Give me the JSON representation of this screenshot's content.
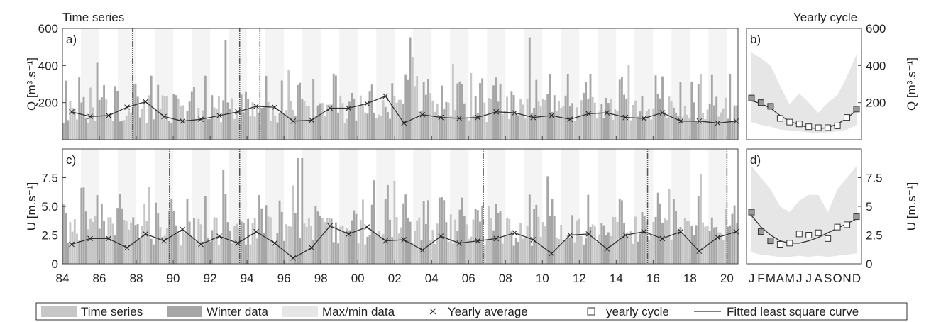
{
  "section_titles": {
    "left": "Time series",
    "right": "Yearly cycle"
  },
  "colors": {
    "series": "#c6c6c6",
    "winter": "#a6a6a6",
    "maxmin": "#e6e6e6",
    "band": "#f4f4f4",
    "line": "#333333"
  },
  "legend": [
    {
      "label": "Time series",
      "kind": "swatch-series"
    },
    {
      "label": "Winter data",
      "kind": "swatch-winter"
    },
    {
      "label": "Max/min data",
      "kind": "swatch-maxmin"
    },
    {
      "label": "Yearly average",
      "kind": "cross"
    },
    {
      "label": "yearly cycle",
      "kind": "square"
    },
    {
      "label": "Fitted least square curve",
      "kind": "line"
    }
  ],
  "chart_data": [
    {
      "id": "a",
      "panel_label": "a)",
      "type": "bar",
      "ylabel": "Q [m³.s⁻¹]",
      "ylim": [
        0,
        600
      ],
      "yticks": [
        200,
        400,
        600
      ],
      "xlim": [
        1984,
        2020.6
      ],
      "xtick_values": [
        1984,
        1986,
        1988,
        1990,
        1992,
        1994,
        1996,
        1998,
        2000,
        2002,
        2004,
        2006,
        2008,
        2010,
        2012,
        2014,
        2016,
        2018,
        2020
      ],
      "xtick_labels": [],
      "yearly_average": {
        "x": [
          1984.5,
          1985.5,
          1986.5,
          1987.5,
          1988.5,
          1989.5,
          1990.5,
          1991.5,
          1992.5,
          1993.5,
          1994.5,
          1995.5,
          1996.5,
          1997.5,
          1998.5,
          1999.5,
          2000.5,
          2001.5,
          2002.5,
          2003.5,
          2004.5,
          2005.5,
          2006.5,
          2007.5,
          2008.5,
          2009.5,
          2010.5,
          2011.5,
          2012.5,
          2013.5,
          2014.5,
          2015.5,
          2016.5,
          2017.5,
          2018.5,
          2019.5,
          2020.5
        ],
        "y": [
          150,
          125,
          130,
          175,
          205,
          125,
          100,
          110,
          130,
          150,
          180,
          175,
          100,
          105,
          170,
          170,
          195,
          235,
          90,
          135,
          120,
          115,
          120,
          150,
          145,
          120,
          130,
          110,
          140,
          145,
          120,
          115,
          145,
          100,
          100,
          90,
          100
        ]
      },
      "extreme_events_x": [
        1987.8,
        1993.6,
        1994.7
      ]
    },
    {
      "id": "b",
      "panel_label": "b)",
      "type": "area",
      "ylabel": "Q [m³.s⁻¹]",
      "ylim": [
        0,
        600
      ],
      "yticks": [
        200,
        400,
        600
      ],
      "months": [
        "J",
        "F",
        "M",
        "A",
        "M",
        "J",
        "J",
        "A",
        "S",
        "O",
        "N",
        "D"
      ],
      "month_labels": [],
      "yearly_cycle": [
        225,
        200,
        180,
        115,
        95,
        85,
        70,
        65,
        65,
        75,
        120,
        165
      ],
      "fitted_curve": [
        210,
        195,
        170,
        130,
        100,
        80,
        65,
        60,
        65,
        85,
        115,
        160
      ],
      "max": [
        470,
        440,
        400,
        290,
        190,
        250,
        200,
        145,
        200,
        240,
        340,
        460
      ],
      "min": [
        95,
        80,
        70,
        55,
        50,
        45,
        40,
        35,
        40,
        45,
        55,
        80
      ]
    },
    {
      "id": "c",
      "panel_label": "c)",
      "type": "bar",
      "ylabel": "U [m.s⁻¹]",
      "ylim": [
        0,
        10
      ],
      "yticks": [
        0,
        2.5,
        5.0,
        7.5
      ],
      "ytick_labels": [
        "0",
        "2.5",
        "5.0",
        "7.5"
      ],
      "xlim": [
        1984,
        2020.6
      ],
      "xtick_values": [
        1984,
        1986,
        1988,
        1990,
        1992,
        1994,
        1996,
        1998,
        2000,
        2002,
        2004,
        2006,
        2008,
        2010,
        2012,
        2014,
        2016,
        2018,
        2020
      ],
      "xtick_labels": [
        "84",
        "86",
        "88",
        "90",
        "92",
        "94",
        "96",
        "98",
        "00",
        "02",
        "04",
        "06",
        "08",
        "10",
        "12",
        "14",
        "16",
        "18",
        "20"
      ],
      "yearly_average": {
        "x": [
          1984.5,
          1985.5,
          1986.5,
          1987.5,
          1988.5,
          1989.5,
          1990.5,
          1991.5,
          1992.5,
          1993.5,
          1994.5,
          1995.5,
          1996.5,
          1997.5,
          1998.5,
          1999.5,
          2000.5,
          2001.5,
          2002.5,
          2003.5,
          2004.5,
          2005.5,
          2006.5,
          2007.5,
          2008.5,
          2009.5,
          2010.5,
          2011.5,
          2012.5,
          2013.5,
          2014.5,
          2015.5,
          2016.5,
          2017.5,
          2018.5,
          2019.5,
          2020.5
        ],
        "y": [
          1.7,
          2.2,
          2.2,
          1.4,
          2.6,
          2.0,
          3.0,
          1.7,
          2.4,
          1.8,
          2.8,
          1.8,
          0.5,
          1.4,
          3.3,
          2.6,
          3.2,
          2.0,
          2.1,
          1.2,
          2.4,
          1.8,
          2.0,
          2.2,
          2.7,
          2.1,
          0.9,
          2.5,
          2.6,
          1.3,
          2.5,
          2.8,
          2.2,
          2.8,
          1.1,
          2.3,
          2.8
        ]
      },
      "extreme_events_x": [
        1989.8,
        1993.6,
        2006.8,
        2015.7,
        2020.0
      ]
    },
    {
      "id": "d",
      "panel_label": "d)",
      "type": "area",
      "ylabel": "U [m.s⁻¹]",
      "ylim": [
        0,
        10
      ],
      "yticks": [
        0,
        2.5,
        5.0,
        7.5
      ],
      "ytick_labels": [
        "0",
        "2.5",
        "5",
        "7.5"
      ],
      "months": [
        "J",
        "F",
        "M",
        "A",
        "M",
        "J",
        "J",
        "A",
        "S",
        "O",
        "N",
        "D"
      ],
      "month_labels": [
        "J",
        "F",
        "M",
        "A",
        "M",
        "J",
        "J",
        "A",
        "S",
        "O",
        "N",
        "D"
      ],
      "yearly_cycle": [
        4.5,
        2.8,
        2.0,
        1.7,
        1.8,
        2.6,
        2.5,
        2.7,
        2.2,
        3.2,
        3.4,
        4.1
      ],
      "fitted_curve": [
        4.2,
        3.2,
        2.5,
        2.0,
        1.8,
        1.8,
        2.0,
        2.3,
        2.7,
        3.1,
        3.5,
        3.9
      ],
      "max": [
        8.5,
        7.5,
        6.5,
        5.0,
        4.5,
        5.5,
        6.0,
        6.0,
        4.5,
        6.5,
        7.5,
        8.5
      ],
      "min": [
        1.0,
        0.8,
        0.7,
        0.6,
        0.6,
        0.7,
        0.6,
        0.7,
        0.6,
        0.7,
        0.8,
        0.9
      ]
    }
  ]
}
